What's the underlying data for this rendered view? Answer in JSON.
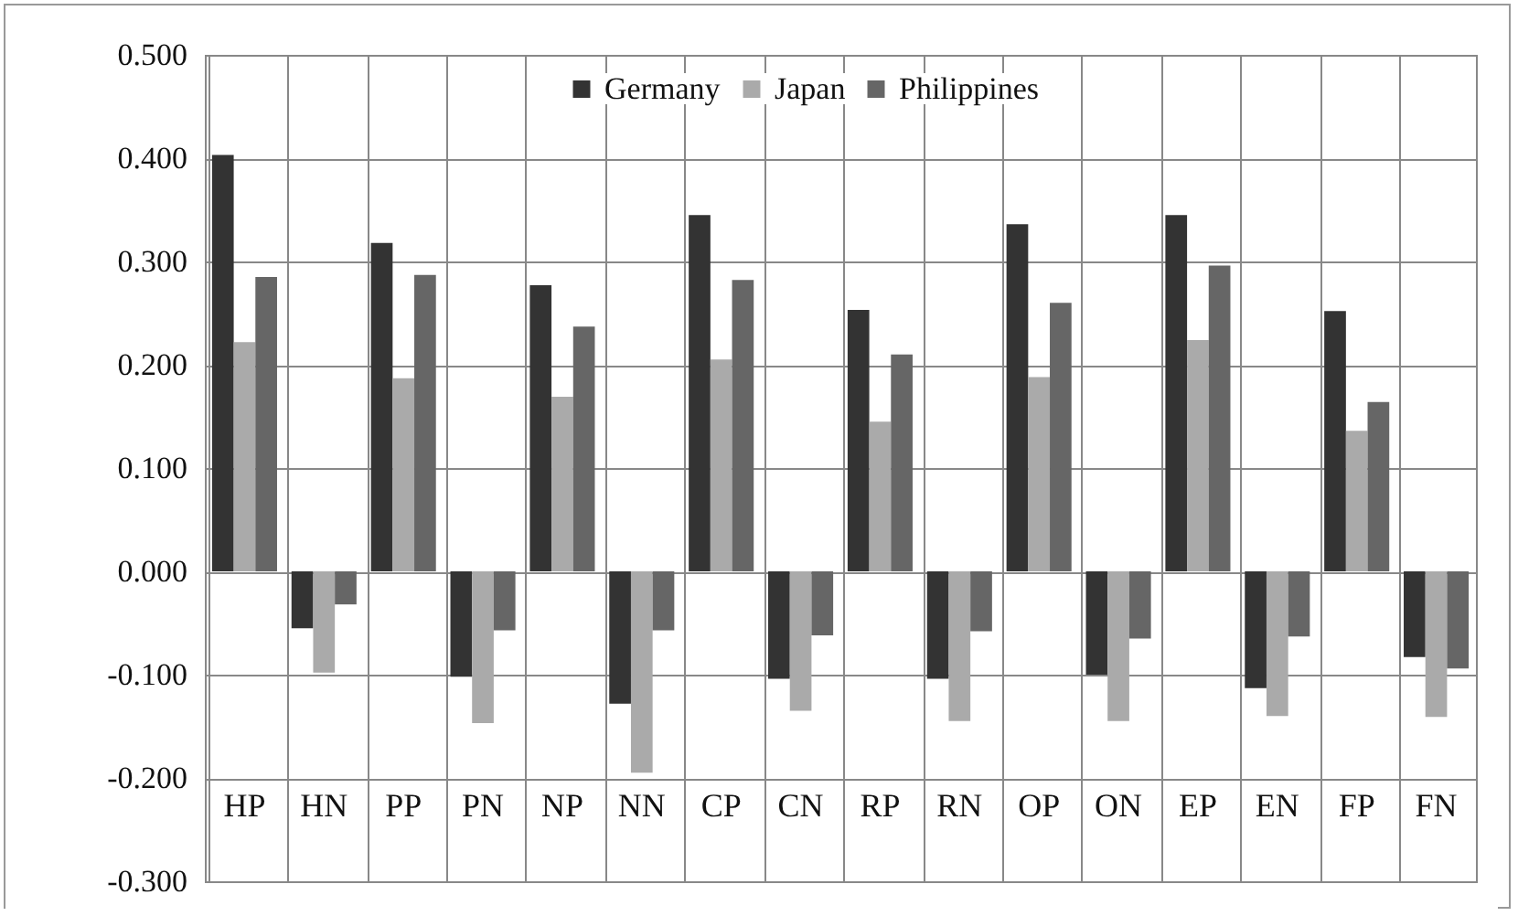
{
  "chart_data": {
    "type": "bar",
    "categories": [
      "HP",
      "HN",
      "PP",
      "PN",
      "NP",
      "NN",
      "CP",
      "CN",
      "RP",
      "RN",
      "OP",
      "ON",
      "EP",
      "EN",
      "FP",
      "FN"
    ],
    "series": [
      {
        "name": "Germany",
        "color": "#333333",
        "values": [
          0.403,
          -0.055,
          0.318,
          -0.102,
          0.277,
          -0.128,
          0.345,
          -0.104,
          0.253,
          -0.104,
          0.336,
          -0.1,
          0.345,
          -0.113,
          0.252,
          -0.083
        ]
      },
      {
        "name": "Japan",
        "color": "#aaaaaa",
        "values": [
          0.222,
          -0.098,
          0.187,
          -0.147,
          0.169,
          -0.195,
          0.205,
          -0.135,
          0.145,
          -0.145,
          0.188,
          -0.145,
          0.224,
          -0.14,
          0.136,
          -0.141
        ]
      },
      {
        "name": "Philippines",
        "color": "#666666",
        "values": [
          0.285,
          -0.032,
          0.287,
          -0.057,
          0.237,
          -0.057,
          0.282,
          -0.062,
          0.21,
          -0.058,
          0.26,
          -0.065,
          0.296,
          -0.063,
          0.164,
          -0.094
        ]
      }
    ],
    "ylim": [
      -0.3,
      0.5
    ],
    "yticks": [
      {
        "value": -0.3,
        "label": "-0.300"
      },
      {
        "value": -0.2,
        "label": "-0.200"
      },
      {
        "value": -0.1,
        "label": "-0.100"
      },
      {
        "value": 0,
        "label": "0.000"
      },
      {
        "value": 0.1,
        "label": "0.100"
      },
      {
        "value": 0.2,
        "label": "0.200"
      },
      {
        "value": 0.3,
        "label": "0.300"
      },
      {
        "value": 0.4,
        "label": "0.400"
      },
      {
        "value": 0.5,
        "label": "0.500"
      }
    ],
    "grid": true,
    "legend": "top"
  }
}
